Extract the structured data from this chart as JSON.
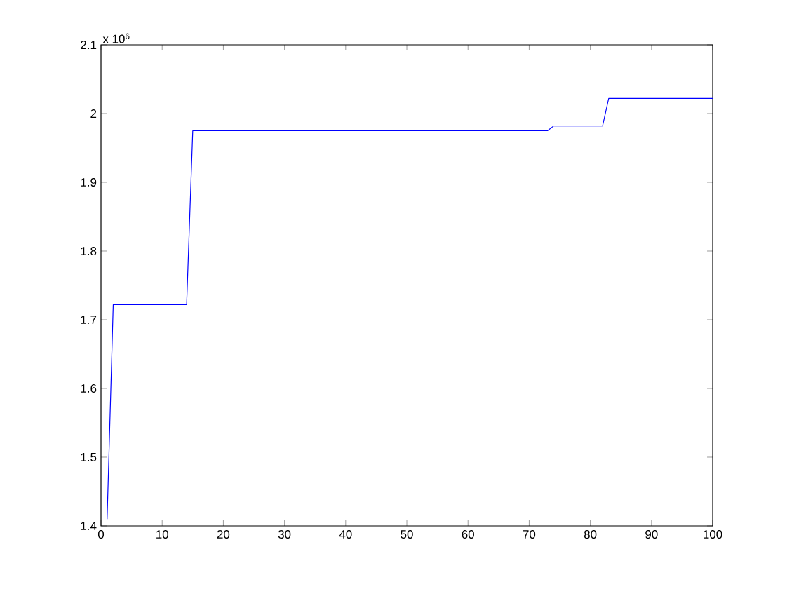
{
  "chart_data": {
    "type": "line",
    "x": [
      1,
      2,
      14,
      15,
      73,
      74,
      82,
      83,
      100
    ],
    "series": [
      {
        "color": "#0000ff",
        "values": [
          1.41,
          1.722,
          1.722,
          1.975,
          1.975,
          1.982,
          1.982,
          2.022,
          2.022
        ]
      }
    ],
    "xlim": [
      0,
      100
    ],
    "xticks": [
      0,
      10,
      20,
      30,
      40,
      50,
      60,
      70,
      80,
      90,
      100
    ],
    "ylim": [
      1.4,
      2.1
    ],
    "yticks": [
      1.4,
      1.5,
      1.6,
      1.7,
      1.8,
      1.9,
      2,
      2.1
    ],
    "annotations": [
      "x 10$^{6}$"
    ],
    "marker": "none",
    "line_style": "solid"
  }
}
